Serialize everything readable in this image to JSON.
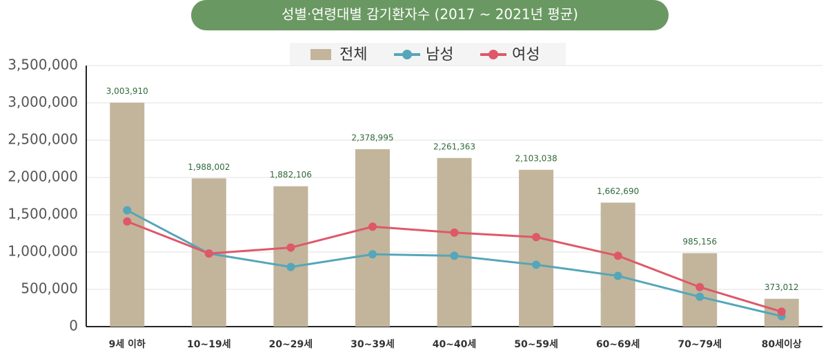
{
  "chart_data": {
    "type": "bar",
    "title": "성별·연령대별 감기환자수 (2017 ~ 2021년 평균)",
    "categories": [
      "9세 이하",
      "10~19세",
      "20~29세",
      "30~39세",
      "40~40세",
      "50~59세",
      "60~69세",
      "70~79세",
      "80세이상"
    ],
    "series": [
      {
        "name": "전체",
        "type": "bar",
        "color": "#c2b59b",
        "values": [
          3003910,
          1988002,
          1882106,
          2378995,
          2261363,
          2103038,
          1662690,
          985156,
          373012
        ],
        "value_labels": [
          "3,003,910",
          "1,988,002",
          "1,882,106",
          "2,378,995",
          "2,261,363",
          "2,103,038",
          "1,662,690",
          "985,156",
          "373,012"
        ]
      },
      {
        "name": "남성",
        "type": "line",
        "color": "#55a6b8",
        "values": [
          1560000,
          980000,
          800000,
          970000,
          950000,
          830000,
          680000,
          400000,
          140000
        ]
      },
      {
        "name": "여성",
        "type": "line",
        "color": "#de5869",
        "values": [
          1410000,
          980000,
          1060000,
          1340000,
          1260000,
          1200000,
          950000,
          530000,
          200000
        ]
      }
    ],
    "ylim": [
      0,
      3500000
    ],
    "yticks": [
      0,
      {
        "value": 500000,
        "label": "500,000"
      },
      {
        "value": 1000000,
        "label": "1,000,000"
      },
      {
        "value": 1500000,
        "label": "1,500,000"
      },
      {
        "value": 2000000,
        "label": "2,000,000"
      },
      {
        "value": 2500000,
        "label": "2,500,000"
      },
      {
        "value": 3000000,
        "label": "3,000,000"
      },
      {
        "value": 3500000,
        "label": "3,500,000"
      }
    ],
    "grid": true
  }
}
